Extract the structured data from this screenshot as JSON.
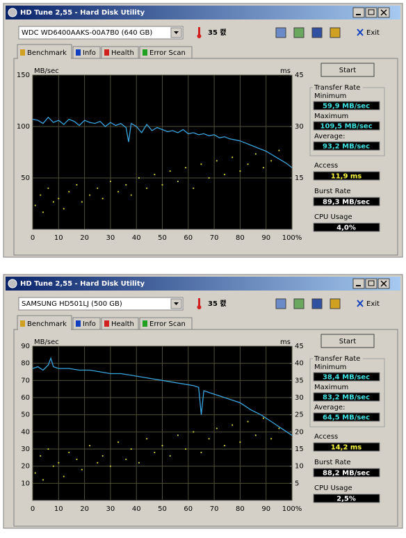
{
  "windows": [
    {
      "title": "HD Tune 2,55 - Hard Disk Utility",
      "drive": "WDC WD6400AAKS-00A7B0 (640 GB)",
      "temperature": "35 캜",
      "exit": "Exit",
      "tabs": [
        "Benchmark",
        "Info",
        "Health",
        "Error Scan"
      ],
      "start": "Start",
      "transfer_rate": "Transfer Rate",
      "transfer_items": [
        {
          "label": "Minimum",
          "value": "59,9 MB/sec"
        },
        {
          "label": "Maximum",
          "value": "109,5 MB/sec"
        },
        {
          "label": "Average:",
          "value": "93,2 MB/sec"
        }
      ],
      "other_items": [
        {
          "label": "Access",
          "value": "11,9 ms"
        },
        {
          "label": "Burst Rate",
          "value": "89,3 MB/sec"
        },
        {
          "label": "CPU Usage",
          "value": "4,0%"
        }
      ]
    },
    {
      "title": "HD Tune 2,55 - Hard Disk Utility",
      "drive": "SAMSUNG HD501LJ (500 GB)",
      "temperature": "35 캜",
      "exit": "Exit",
      "tabs": [
        "Benchmark",
        "Info",
        "Health",
        "Error Scan"
      ],
      "start": "Start",
      "transfer_rate": "Transfer Rate",
      "transfer_items": [
        {
          "label": "Minimum",
          "value": "38,4 MB/sec"
        },
        {
          "label": "Maximum",
          "value": "83,2 MB/sec"
        },
        {
          "label": "Average:",
          "value": "64,5 MB/sec"
        }
      ],
      "other_items": [
        {
          "label": "Access",
          "value": "14,2 ms"
        },
        {
          "label": "Burst Rate",
          "value": "88,2 MB/sec"
        },
        {
          "label": "CPU Usage",
          "value": "2,5%"
        }
      ]
    }
  ],
  "chart_data": [
    {
      "type": "line",
      "y_unit": "MB/sec",
      "y2_unit": "ms",
      "grid": true,
      "xlim": [
        0,
        100
      ],
      "xticks": [
        0,
        10,
        20,
        30,
        40,
        50,
        60,
        70,
        80,
        90,
        {
          "value": 100,
          "label": "100%"
        }
      ],
      "ylim": [
        0,
        150
      ],
      "yticks": [
        50,
        100,
        150
      ],
      "y2lim": [
        0,
        45
      ],
      "y2ticks": [
        15,
        30,
        45
      ],
      "series": [
        {
          "type": "line",
          "color": "#3aa6e0",
          "x": [
            0,
            2,
            4,
            6,
            8,
            10,
            12,
            14,
            16,
            18,
            20,
            22,
            24,
            26,
            28,
            30,
            32,
            34,
            36,
            37,
            38,
            40,
            42,
            44,
            46,
            48,
            50,
            52,
            54,
            56,
            58,
            60,
            62,
            64,
            66,
            68,
            70,
            72,
            74,
            76,
            78,
            80,
            82,
            84,
            86,
            88,
            90,
            92,
            94,
            96,
            98,
            100
          ],
          "values": [
            107,
            106,
            103,
            109,
            104,
            106,
            102,
            107,
            105,
            101,
            106,
            104,
            103,
            105,
            100,
            104,
            101,
            103,
            99,
            85,
            103,
            100,
            94,
            102,
            96,
            99,
            97,
            95,
            96,
            94,
            97,
            93,
            94,
            92,
            93,
            91,
            92,
            89,
            90,
            88,
            87,
            86,
            84,
            82,
            80,
            78,
            76,
            73,
            70,
            67,
            64,
            60
          ]
        },
        {
          "type": "scatter",
          "axis": "y2",
          "color": "#d0d040",
          "x": [
            1,
            3,
            4,
            6,
            8,
            10,
            12,
            14,
            17,
            19,
            22,
            25,
            27,
            30,
            33,
            36,
            38,
            41,
            44,
            47,
            50,
            53,
            56,
            59,
            62,
            65,
            68,
            71,
            74,
            77,
            80,
            83,
            86,
            89,
            92,
            95
          ],
          "values": [
            7,
            10,
            5,
            12,
            8,
            9,
            6,
            11,
            13,
            8,
            10,
            12,
            9,
            14,
            11,
            13,
            10,
            15,
            12,
            16,
            13,
            17,
            14,
            18,
            12,
            19,
            15,
            20,
            16,
            21,
            17,
            19,
            22,
            18,
            20,
            23
          ]
        }
      ]
    },
    {
      "type": "line",
      "y_unit": "MB/sec",
      "y2_unit": "ms",
      "grid": true,
      "xlim": [
        0,
        100
      ],
      "xticks": [
        0,
        10,
        20,
        30,
        40,
        50,
        60,
        70,
        80,
        90,
        {
          "value": 100,
          "label": "100%"
        }
      ],
      "ylim": [
        0,
        90
      ],
      "yticks": [
        10,
        20,
        30,
        40,
        50,
        60,
        70,
        80,
        90
      ],
      "y2lim": [
        0,
        45
      ],
      "y2ticks": [
        5,
        10,
        15,
        20,
        25,
        30,
        35,
        40,
        45
      ],
      "series": [
        {
          "type": "line",
          "color": "#3aa6e0",
          "x": [
            0,
            2,
            4,
            6,
            7,
            8,
            10,
            14,
            18,
            22,
            26,
            30,
            34,
            38,
            42,
            46,
            50,
            54,
            58,
            62,
            64,
            65,
            66,
            68,
            72,
            76,
            80,
            84,
            88,
            92,
            96,
            100
          ],
          "values": [
            77,
            78,
            76,
            79,
            83,
            78,
            77,
            77,
            76,
            76,
            75,
            74,
            74,
            73,
            72,
            71,
            70,
            69,
            68,
            67,
            66,
            50,
            64,
            63,
            61,
            59,
            57,
            53,
            50,
            46,
            42,
            38
          ]
        },
        {
          "type": "scatter",
          "axis": "y2",
          "color": "#d0d040",
          "x": [
            1,
            3,
            4,
            6,
            8,
            10,
            12,
            14,
            17,
            19,
            22,
            25,
            27,
            30,
            33,
            36,
            38,
            41,
            44,
            47,
            50,
            53,
            56,
            59,
            62,
            65,
            68,
            71,
            74,
            77,
            80,
            83,
            86,
            89,
            92,
            95
          ],
          "values": [
            8,
            13,
            6,
            15,
            10,
            11,
            7,
            14,
            12,
            9,
            16,
            11,
            13,
            10,
            17,
            12,
            15,
            11,
            18,
            14,
            16,
            13,
            19,
            15,
            20,
            14,
            18,
            21,
            16,
            22,
            17,
            23,
            19,
            24,
            18,
            21
          ]
        }
      ]
    }
  ]
}
